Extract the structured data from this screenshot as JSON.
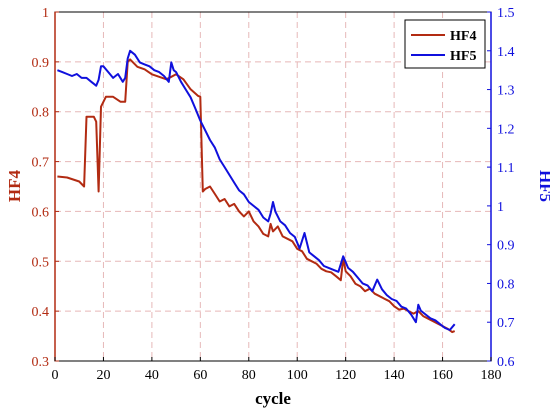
{
  "chart_data": {
    "type": "line",
    "xlabel": "cycle",
    "ylabel_left": "HF4",
    "ylabel_right": "HF5",
    "xlim": [
      0,
      180
    ],
    "xticks": [
      "0",
      "20",
      "40",
      "60",
      "80",
      "100",
      "120",
      "140",
      "160",
      "180"
    ],
    "ylim_left": [
      0.3,
      1.0
    ],
    "yticks_left": [
      "0.3",
      "0.4",
      "0.5",
      "0.6",
      "0.7",
      "0.8",
      "0.9",
      "1"
    ],
    "ylim_right": [
      0.6,
      1.5
    ],
    "yticks_right": [
      "0.6",
      "0.7",
      "0.8",
      "0.9",
      "1",
      "1.1",
      "1.2",
      "1.3",
      "1.4",
      "1.5"
    ],
    "grid": true,
    "legend_position": "top-right",
    "series": [
      {
        "name": "HF4",
        "axis": "left",
        "color": "#b22b12",
        "x": [
          1,
          5,
          10,
          12,
          13,
          15,
          16,
          17,
          18,
          19,
          21,
          24,
          27,
          29,
          30,
          31,
          34,
          37,
          40,
          43,
          46,
          48,
          50,
          53,
          56,
          59,
          60,
          61,
          62,
          64,
          66,
          68,
          70,
          72,
          74,
          76,
          78,
          80,
          82,
          84,
          86,
          88,
          89,
          90,
          92,
          94,
          96,
          98,
          100,
          102,
          104,
          106,
          108,
          110,
          112,
          114,
          116,
          118,
          119,
          120,
          122,
          124,
          126,
          128,
          130,
          132,
          134,
          136,
          138,
          140,
          142,
          144,
          146,
          148,
          150,
          152,
          154,
          156,
          158,
          160,
          162,
          164,
          165
        ],
        "y": [
          0.67,
          0.668,
          0.66,
          0.65,
          0.79,
          0.79,
          0.79,
          0.78,
          0.64,
          0.81,
          0.83,
          0.83,
          0.82,
          0.82,
          0.9,
          0.905,
          0.89,
          0.885,
          0.875,
          0.87,
          0.865,
          0.87,
          0.875,
          0.865,
          0.845,
          0.832,
          0.83,
          0.64,
          0.645,
          0.65,
          0.635,
          0.62,
          0.625,
          0.61,
          0.615,
          0.6,
          0.59,
          0.6,
          0.58,
          0.57,
          0.555,
          0.55,
          0.575,
          0.56,
          0.57,
          0.55,
          0.545,
          0.54,
          0.525,
          0.52,
          0.505,
          0.5,
          0.495,
          0.485,
          0.48,
          0.478,
          0.47,
          0.462,
          0.505,
          0.48,
          0.47,
          0.455,
          0.45,
          0.44,
          0.445,
          0.435,
          0.43,
          0.425,
          0.42,
          0.41,
          0.403,
          0.405,
          0.4,
          0.395,
          0.4,
          0.39,
          0.385,
          0.38,
          0.375,
          0.37,
          0.365,
          0.358,
          0.36
        ]
      },
      {
        "name": "HF5",
        "axis": "right",
        "color": "#1010dd",
        "x": [
          1,
          3,
          5,
          7,
          9,
          11,
          13,
          15,
          17,
          18,
          19,
          20,
          22,
          24,
          26,
          28,
          29,
          30,
          31,
          33,
          35,
          37,
          39,
          41,
          43,
          45,
          47,
          48,
          49,
          50,
          52,
          54,
          56,
          58,
          60,
          62,
          64,
          66,
          68,
          70,
          72,
          74,
          76,
          78,
          80,
          82,
          84,
          86,
          88,
          89,
          90,
          91,
          93,
          95,
          97,
          99,
          101,
          103,
          105,
          107,
          109,
          111,
          113,
          115,
          117,
          119,
          121,
          123,
          125,
          127,
          129,
          131,
          133,
          135,
          137,
          139,
          141,
          143,
          145,
          147,
          149,
          150,
          151,
          153,
          155,
          157,
          159,
          161,
          163,
          165
        ],
        "y": [
          1.35,
          1.345,
          1.34,
          1.335,
          1.34,
          1.33,
          1.33,
          1.32,
          1.31,
          1.325,
          1.36,
          1.36,
          1.345,
          1.33,
          1.34,
          1.32,
          1.33,
          1.38,
          1.4,
          1.39,
          1.37,
          1.365,
          1.36,
          1.35,
          1.345,
          1.335,
          1.32,
          1.37,
          1.35,
          1.345,
          1.32,
          1.3,
          1.28,
          1.25,
          1.22,
          1.195,
          1.17,
          1.15,
          1.12,
          1.1,
          1.08,
          1.06,
          1.04,
          1.03,
          1.01,
          1.0,
          0.99,
          0.97,
          0.96,
          0.98,
          1.01,
          0.985,
          0.96,
          0.95,
          0.93,
          0.92,
          0.89,
          0.93,
          0.88,
          0.87,
          0.86,
          0.845,
          0.84,
          0.835,
          0.83,
          0.87,
          0.84,
          0.83,
          0.815,
          0.8,
          0.795,
          0.78,
          0.81,
          0.785,
          0.77,
          0.76,
          0.755,
          0.74,
          0.735,
          0.72,
          0.7,
          0.745,
          0.73,
          0.72,
          0.71,
          0.705,
          0.695,
          0.685,
          0.68,
          0.695
        ]
      }
    ]
  }
}
